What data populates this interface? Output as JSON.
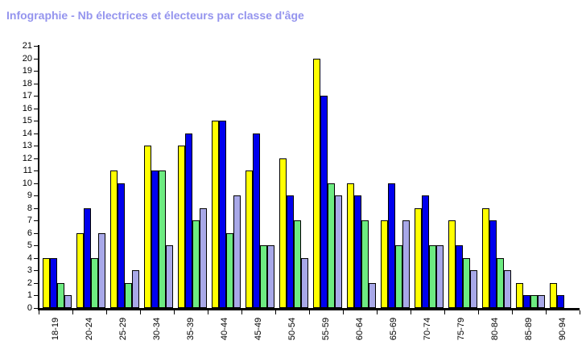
{
  "chart_data": {
    "type": "bar",
    "title": "Infographie - Nb électrices et électeurs par classe d'âge",
    "title_color": "#9494EE",
    "categories": [
      "18-19",
      "20-24",
      "25-29",
      "30-34",
      "35-39",
      "40-44",
      "45-49",
      "50-54",
      "55-59",
      "60-64",
      "65-69",
      "70-74",
      "75-79",
      "80-84",
      "85-89",
      "90-94"
    ],
    "series": [
      {
        "name": "yellow",
        "color": "#FFFF00",
        "values": [
          4,
          6,
          11,
          13,
          13,
          15,
          11,
          12,
          20,
          10,
          7,
          8,
          7,
          8,
          2,
          2
        ]
      },
      {
        "name": "blue",
        "color": "#0000EE",
        "values": [
          4,
          8,
          10,
          11,
          14,
          15,
          14,
          9,
          17,
          9,
          10,
          9,
          5,
          7,
          1,
          1
        ]
      },
      {
        "name": "green",
        "color": "#6DEB81",
        "values": [
          2,
          4,
          2,
          11,
          7,
          6,
          5,
          7,
          10,
          7,
          5,
          5,
          4,
          4,
          1,
          0
        ]
      },
      {
        "name": "lavender",
        "color": "#A8A8E8",
        "values": [
          1,
          6,
          3,
          5,
          8,
          9,
          5,
          4,
          9,
          2,
          7,
          5,
          3,
          3,
          1,
          0
        ]
      }
    ],
    "ylim": [
      0,
      21
    ],
    "ytick_step": 1,
    "axis_color": "#000000",
    "bar_outline_color": "#000000",
    "grid": false,
    "legend_position": "none",
    "background": "#FFFFFF"
  }
}
